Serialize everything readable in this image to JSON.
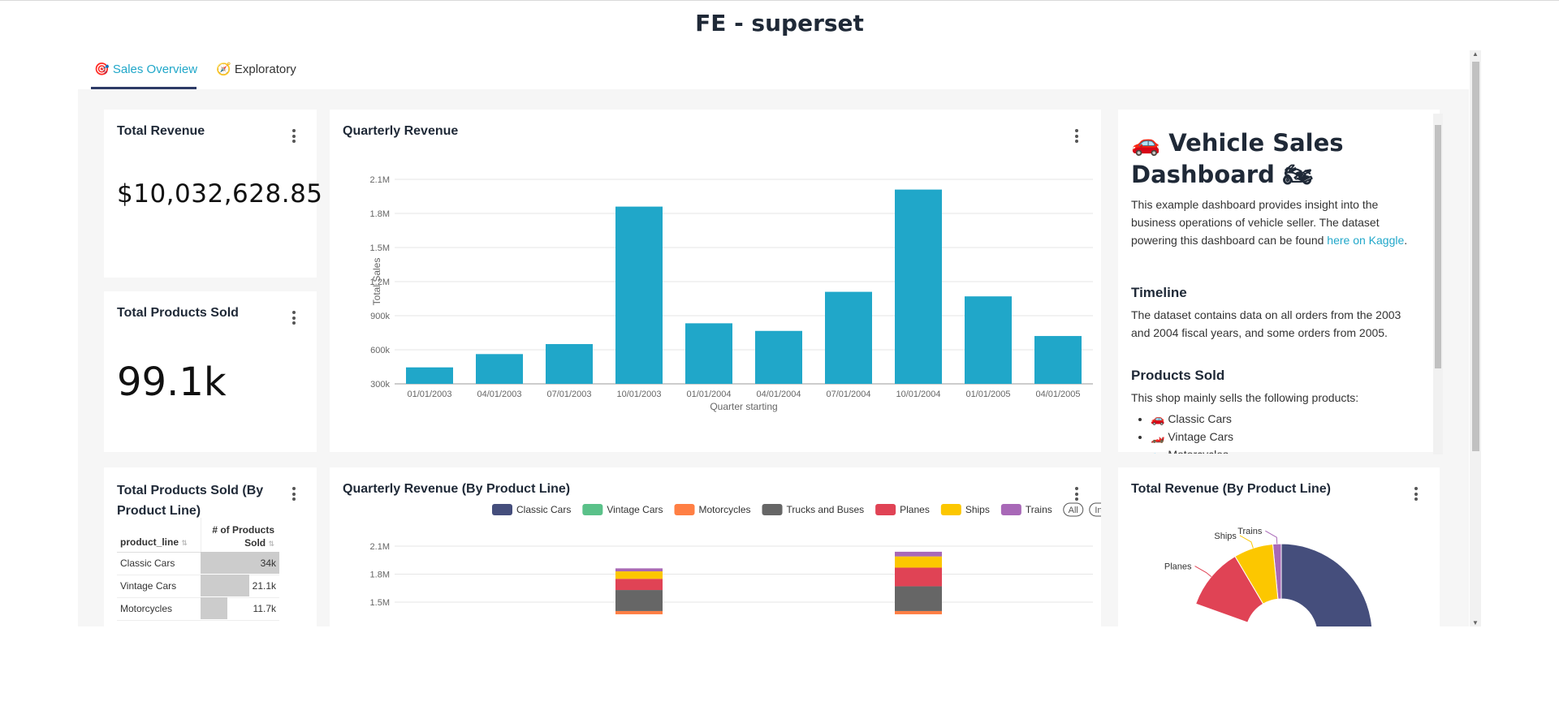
{
  "page": {
    "title": "FE - superset"
  },
  "tabs": [
    {
      "icon": "🎯",
      "label": "Sales Overview",
      "active": true
    },
    {
      "icon": "🧭",
      "label": "Exploratory",
      "active": false
    }
  ],
  "kpis": {
    "total_revenue": {
      "title": "Total Revenue",
      "value": "$10,032,628.85"
    },
    "total_products_sold": {
      "title": "Total Products Sold",
      "value": "99.1k"
    }
  },
  "quarterly_revenue": {
    "title": "Quarterly Revenue"
  },
  "markdown": {
    "title": "🚗 Vehicle Sales Dashboard 🏍",
    "intro_text": "This example dashboard provides insight into the business operations of vehicle seller. The dataset powering this dashboard can be found",
    "intro_link": "here on Kaggle",
    "intro_end": ".",
    "timeline_heading": "Timeline",
    "timeline_text": "The dataset contains data on all orders from the 2003 and 2004 fiscal years, and some orders from 2005.",
    "products_heading": "Products Sold",
    "products_text": "This shop mainly sells the following products:",
    "products": [
      "🚗 Classic Cars",
      "🏎️ Vintage Cars",
      "🏍️ Motorcycles"
    ]
  },
  "products_table": {
    "title": "Total Products Sold (By Product Line)",
    "columns": [
      "product_line",
      "# of Products Sold"
    ],
    "rows": [
      {
        "name": "Classic Cars",
        "value": "34k"
      },
      {
        "name": "Vintage Cars",
        "value": "21.1k"
      },
      {
        "name": "Motorcycles",
        "value": "11.7k"
      }
    ]
  },
  "stacked": {
    "title": "Quarterly Revenue (By Product Line)",
    "all_label": "All",
    "inv_label": "Inv"
  },
  "pie": {
    "title": "Total Revenue (By Product Line)"
  },
  "colors": {
    "accent": "#20a7c9",
    "bar": "#20a7c9",
    "classic_cars": "#454e7c",
    "vintage_cars": "#5ac189",
    "motorcycles": "#ff7f44",
    "trucks_buses": "#666666",
    "planes": "#e04355",
    "ships": "#fcc700",
    "trains": "#a868b7"
  },
  "chart_data": [
    {
      "type": "bar",
      "title": "Quarterly Revenue",
      "xlabel": "Quarter starting",
      "ylabel": "Total Sales",
      "categories": [
        "01/01/2003",
        "04/01/2003",
        "07/01/2003",
        "10/01/2003",
        "01/01/2004",
        "04/01/2004",
        "07/01/2004",
        "10/01/2004",
        "01/01/2005",
        "04/01/2005"
      ],
      "values": [
        445000,
        562000,
        650000,
        1860000,
        833000,
        766000,
        1110000,
        2010000,
        1070000,
        721000
      ],
      "ylim": [
        300000,
        2100000
      ],
      "yticks": [
        300000,
        600000,
        900000,
        1200000,
        1500000,
        1800000,
        2100000
      ],
      "ytick_labels": [
        "300k",
        "600k",
        "900k",
        "1.2M",
        "1.5M",
        "1.8M",
        "2.1M"
      ],
      "grid": true
    },
    {
      "type": "bar",
      "stacked": true,
      "title": "Quarterly Revenue (By Product Line)",
      "legend": [
        "Classic Cars",
        "Vintage Cars",
        "Motorcycles",
        "Trucks and Buses",
        "Planes",
        "Ships",
        "Trains"
      ],
      "legend_position": "top-right",
      "yticks": [
        1500000,
        1800000,
        2100000
      ],
      "ytick_labels": [
        "1.5M",
        "1.8M",
        "2.1M"
      ],
      "visible_range": [
        1400000,
        2100000
      ],
      "series_top_segments": [
        {
          "category": "10/01/2003",
          "segments": [
            {
              "name": "Motorcycles",
              "from": 1370000,
              "to": 1405000
            },
            {
              "name": "Trucks and Buses",
              "from": 1405000,
              "to": 1630000
            },
            {
              "name": "Planes",
              "from": 1630000,
              "to": 1750000
            },
            {
              "name": "Ships",
              "from": 1750000,
              "to": 1830000
            },
            {
              "name": "Trains",
              "from": 1830000,
              "to": 1862000
            }
          ]
        },
        {
          "category": "10/01/2004",
          "segments": [
            {
              "name": "Motorcycles",
              "from": 1370000,
              "to": 1405000
            },
            {
              "name": "Trucks and Buses",
              "from": 1405000,
              "to": 1670000
            },
            {
              "name": "Planes",
              "from": 1670000,
              "to": 1870000
            },
            {
              "name": "Ships",
              "from": 1870000,
              "to": 1990000
            },
            {
              "name": "Trains",
              "from": 1990000,
              "to": 2040000
            }
          ]
        }
      ]
    },
    {
      "type": "pie",
      "title": "Total Revenue (By Product Line)",
      "labels": [
        "Trains",
        "Ships",
        "Planes",
        "Classic Cars"
      ],
      "slices": [
        {
          "name": "Trains",
          "share": 0.015,
          "label": "Trains"
        },
        {
          "name": "Ships",
          "share": 0.07,
          "label": "Ships"
        },
        {
          "name": "Planes",
          "share": 0.11,
          "label": "Planes"
        },
        {
          "name": "Classic Cars",
          "share": 0.39,
          "label": ""
        }
      ]
    }
  ]
}
